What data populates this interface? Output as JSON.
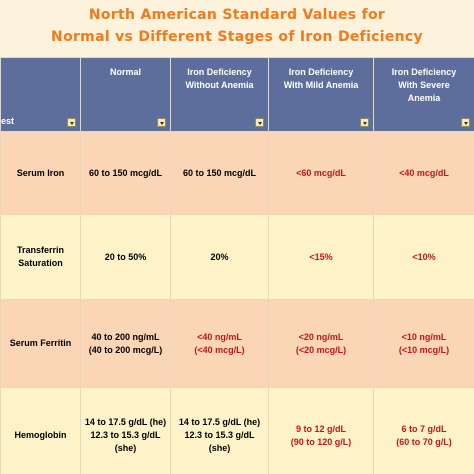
{
  "header": {
    "title": [
      "North American Standard Values for",
      "Normal vs Different Stages of Iron Deficiency"
    ]
  },
  "table": {
    "columns": [
      "est",
      "Normal",
      "Iron Deficiency\nWithout Anemia",
      "Iron Deficiency\nWith Mild Anemia",
      "Iron Deficiency\nWith Severe\nAnemia"
    ],
    "rows": [
      [
        "Serum Iron",
        "60 to 150 mcg/dL",
        "60 to 150 mcg/dL",
        "<60 mcg/dL",
        "<40 mcg/dL"
      ],
      [
        "Transferrin\nSaturation",
        "20 to 50%",
        "20%",
        "<15%",
        "<10%"
      ],
      [
        "Serum Ferritin",
        "40 to 200 ng/mL\n(40 to 200 mcg/L)",
        "<40 ng/mL\n(<40 mcg/L)",
        "<20 ng/mL\n(<20 mcg/L)",
        "<10 ng/mL\n(<10 mcg/L)"
      ],
      [
        "Hemoglobin",
        "14 to 17.5 g/dL (he)\n12.3 to 15.3 g/dL (she)",
        "14 to 17.5 g/dL (he)\n12.3 to 15.3 g/dL (she)",
        "9 to 12 g/dL\n(90 to 120 g/L)",
        "6 to 7 g/dL\n(60 to 70 g/L)"
      ]
    ]
  }
}
